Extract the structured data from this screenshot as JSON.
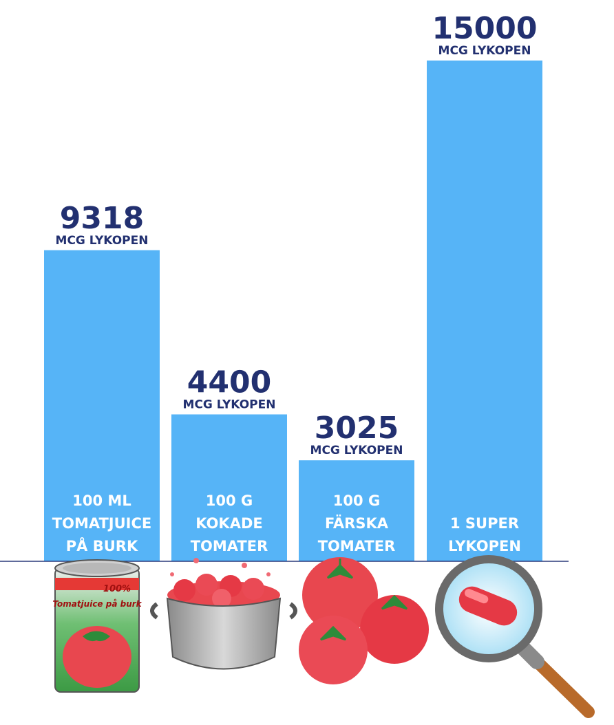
{
  "chart_data": {
    "type": "bar",
    "categories": [
      [
        "100 ML",
        "TOMATJUICE",
        "PÅ BURK"
      ],
      [
        "100 G",
        "KOKADE",
        "TOMATER"
      ],
      [
        "100 G",
        "FÄRSKA",
        "TOMATER"
      ],
      [
        "1 SUPER",
        "LYKOPEN"
      ]
    ],
    "values": [
      9318,
      4400,
      3025,
      15000
    ],
    "value_labels": [
      "9318",
      "4400",
      "3025",
      "15000"
    ],
    "unit_label": "MCG LYKOPEN",
    "ylim": [
      0,
      15000
    ],
    "grid": false,
    "bar_color": "#56b4f7",
    "text_color": "#223070",
    "baseline_color": "#2a3a7a",
    "icons": [
      "tomato-juice-can-icon",
      "cooking-pot-tomatoes-icon",
      "fresh-tomatoes-icon",
      "magnifier-capsule-icon"
    ],
    "can_text": {
      "percent": "100%",
      "name": "Tomatjuice på burk"
    }
  }
}
